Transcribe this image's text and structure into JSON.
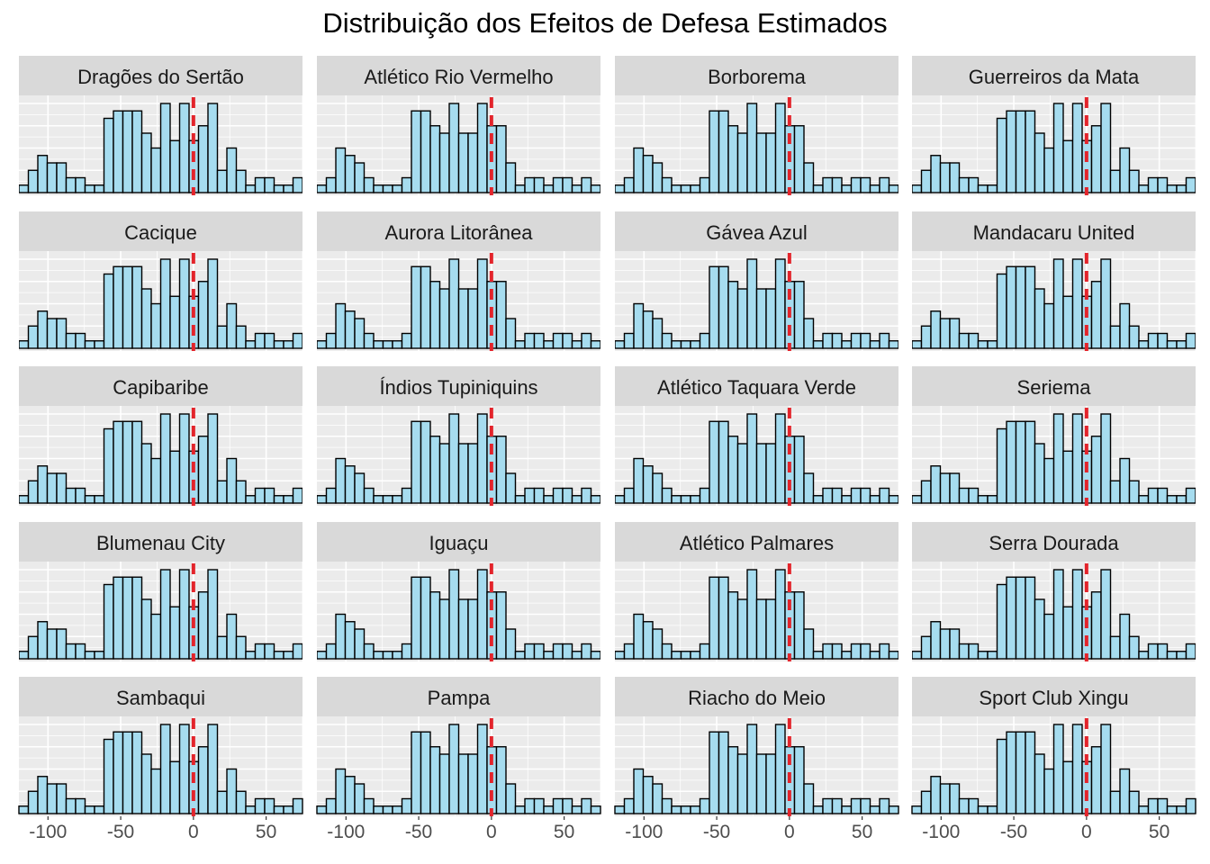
{
  "chart_data": {
    "type": "bar",
    "title": "Distribuição dos Efeitos de Defesa Estimados",
    "xlabel": "",
    "ylabel": "",
    "x_ticks": [
      "-100",
      "-50",
      "0",
      "50"
    ],
    "xlim": [
      -120,
      75
    ],
    "reference_line_x": 0,
    "grid": true,
    "bar_fill": "#a6dcef",
    "bar_stroke": "#000000",
    "line_color": "#e3242b",
    "panel_bg": "#ebebeb",
    "strip_bg": "#d9d9d9",
    "bin_starts": [
      -120,
      -113.5,
      -107,
      -100.5,
      -94,
      -87.5,
      -81,
      -74.5,
      -68,
      -61.5,
      -55,
      -48.5,
      -42,
      -35.5,
      -29,
      -22.5,
      -16,
      -9.5,
      -3,
      3.5,
      10,
      16.5,
      23,
      29.5,
      36,
      42.5,
      49,
      55.5,
      62,
      68.5
    ],
    "bin_width": 6.5,
    "panels": [
      {
        "team": "Dragões do Sertão",
        "counts": [
          1,
          3,
          5,
          4,
          4,
          2,
          2,
          1,
          1,
          10,
          11,
          11,
          11,
          8,
          6,
          12,
          7,
          12,
          7,
          9,
          12,
          3,
          6,
          3,
          1,
          2,
          2,
          1,
          1,
          2
        ]
      },
      {
        "team": "Atlético Rio Vermelho",
        "counts": [
          1,
          2,
          6,
          5,
          4,
          2,
          1,
          1,
          1,
          2,
          11,
          11,
          9,
          8,
          12,
          8,
          8,
          12,
          9,
          9,
          4,
          1,
          2,
          2,
          1,
          2,
          2,
          1,
          2,
          1
        ]
      },
      {
        "team": "Borborema",
        "counts": [
          1,
          2,
          6,
          5,
          4,
          2,
          1,
          1,
          1,
          2,
          11,
          11,
          9,
          8,
          12,
          8,
          8,
          12,
          9,
          9,
          4,
          1,
          2,
          2,
          1,
          2,
          2,
          1,
          2,
          1
        ]
      },
      {
        "team": "Guerreiros da Mata",
        "counts": [
          1,
          3,
          5,
          4,
          4,
          2,
          2,
          1,
          1,
          10,
          11,
          11,
          11,
          8,
          6,
          12,
          7,
          12,
          7,
          9,
          12,
          3,
          6,
          3,
          1,
          2,
          2,
          1,
          1,
          2
        ]
      },
      {
        "team": "Cacique",
        "counts": [
          1,
          3,
          5,
          4,
          4,
          2,
          2,
          1,
          1,
          10,
          11,
          11,
          11,
          8,
          6,
          12,
          7,
          12,
          7,
          9,
          12,
          3,
          6,
          3,
          1,
          2,
          2,
          1,
          1,
          2
        ]
      },
      {
        "team": "Aurora Litorânea",
        "counts": [
          1,
          2,
          6,
          5,
          4,
          2,
          1,
          1,
          1,
          2,
          11,
          11,
          9,
          8,
          12,
          8,
          8,
          12,
          9,
          9,
          4,
          1,
          2,
          2,
          1,
          2,
          2,
          1,
          2,
          1
        ]
      },
      {
        "team": "Gávea Azul",
        "counts": [
          1,
          2,
          6,
          5,
          4,
          2,
          1,
          1,
          1,
          2,
          11,
          11,
          9,
          8,
          12,
          8,
          8,
          12,
          9,
          9,
          4,
          1,
          2,
          2,
          1,
          2,
          2,
          1,
          2,
          1
        ]
      },
      {
        "team": "Mandacaru United",
        "counts": [
          1,
          3,
          5,
          4,
          4,
          2,
          2,
          1,
          1,
          10,
          11,
          11,
          11,
          8,
          6,
          12,
          7,
          12,
          7,
          9,
          12,
          3,
          6,
          3,
          1,
          2,
          2,
          1,
          1,
          2
        ]
      },
      {
        "team": "Capibaribe",
        "counts": [
          1,
          3,
          5,
          4,
          4,
          2,
          2,
          1,
          1,
          10,
          11,
          11,
          11,
          8,
          6,
          12,
          7,
          12,
          7,
          9,
          12,
          3,
          6,
          3,
          1,
          2,
          2,
          1,
          1,
          2
        ]
      },
      {
        "team": "Índios Tupiniquins",
        "counts": [
          1,
          2,
          6,
          5,
          4,
          2,
          1,
          1,
          1,
          2,
          11,
          11,
          9,
          8,
          12,
          8,
          8,
          12,
          9,
          9,
          4,
          1,
          2,
          2,
          1,
          2,
          2,
          1,
          2,
          1
        ]
      },
      {
        "team": "Atlético Taquara Verde",
        "counts": [
          1,
          2,
          6,
          5,
          4,
          2,
          1,
          1,
          1,
          2,
          11,
          11,
          9,
          8,
          12,
          8,
          8,
          12,
          9,
          9,
          4,
          1,
          2,
          2,
          1,
          2,
          2,
          1,
          2,
          1
        ]
      },
      {
        "team": "Seriema",
        "counts": [
          1,
          3,
          5,
          4,
          4,
          2,
          2,
          1,
          1,
          10,
          11,
          11,
          11,
          8,
          6,
          12,
          7,
          12,
          7,
          9,
          12,
          3,
          6,
          3,
          1,
          2,
          2,
          1,
          1,
          2
        ]
      },
      {
        "team": "Blumenau City",
        "counts": [
          1,
          3,
          5,
          4,
          4,
          2,
          2,
          1,
          1,
          10,
          11,
          11,
          11,
          8,
          6,
          12,
          7,
          12,
          7,
          9,
          12,
          3,
          6,
          3,
          1,
          2,
          2,
          1,
          1,
          2
        ]
      },
      {
        "team": "Iguaçu",
        "counts": [
          1,
          2,
          6,
          5,
          4,
          2,
          1,
          1,
          1,
          2,
          11,
          11,
          9,
          8,
          12,
          8,
          8,
          12,
          9,
          9,
          4,
          1,
          2,
          2,
          1,
          2,
          2,
          1,
          2,
          1
        ]
      },
      {
        "team": "Atlético Palmares",
        "counts": [
          1,
          2,
          6,
          5,
          4,
          2,
          1,
          1,
          1,
          2,
          11,
          11,
          9,
          8,
          12,
          8,
          8,
          12,
          9,
          9,
          4,
          1,
          2,
          2,
          1,
          2,
          2,
          1,
          2,
          1
        ]
      },
      {
        "team": "Serra Dourada",
        "counts": [
          1,
          3,
          5,
          4,
          4,
          2,
          2,
          1,
          1,
          10,
          11,
          11,
          11,
          8,
          6,
          12,
          7,
          12,
          7,
          9,
          12,
          3,
          6,
          3,
          1,
          2,
          2,
          1,
          1,
          2
        ]
      },
      {
        "team": "Sambaqui",
        "counts": [
          1,
          3,
          5,
          4,
          4,
          2,
          2,
          1,
          1,
          10,
          11,
          11,
          11,
          8,
          6,
          12,
          7,
          12,
          7,
          9,
          12,
          3,
          6,
          3,
          1,
          2,
          2,
          1,
          1,
          2
        ]
      },
      {
        "team": "Pampa",
        "counts": [
          1,
          2,
          6,
          5,
          4,
          2,
          1,
          1,
          1,
          2,
          11,
          11,
          9,
          8,
          12,
          8,
          8,
          12,
          9,
          9,
          4,
          1,
          2,
          2,
          1,
          2,
          2,
          1,
          2,
          1
        ]
      },
      {
        "team": "Riacho do Meio",
        "counts": [
          1,
          2,
          6,
          5,
          4,
          2,
          1,
          1,
          1,
          2,
          11,
          11,
          9,
          8,
          12,
          8,
          8,
          12,
          9,
          9,
          4,
          1,
          2,
          2,
          1,
          2,
          2,
          1,
          2,
          1
        ]
      },
      {
        "team": "Sport Club Xingu",
        "counts": [
          1,
          3,
          5,
          4,
          4,
          2,
          2,
          1,
          1,
          10,
          11,
          11,
          11,
          8,
          6,
          12,
          7,
          12,
          7,
          9,
          12,
          3,
          6,
          3,
          1,
          2,
          2,
          1,
          1,
          2
        ]
      }
    ]
  }
}
